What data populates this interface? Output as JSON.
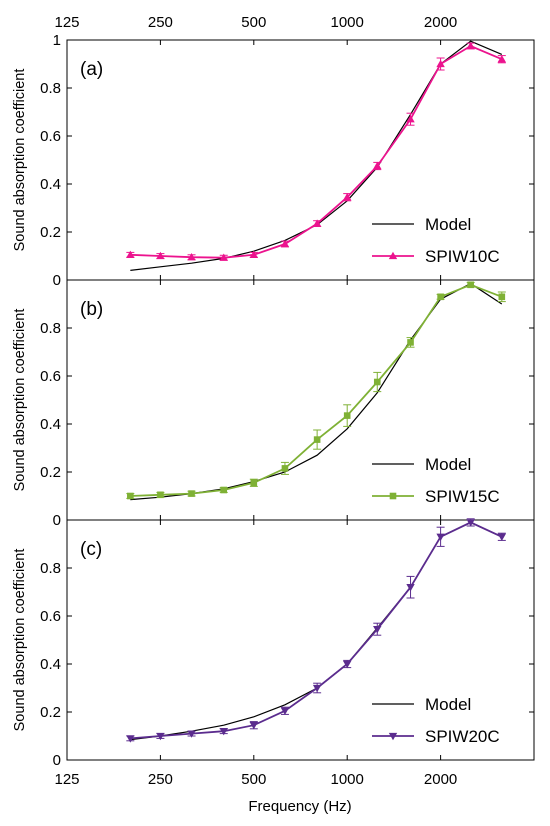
{
  "x_ticks": [
    "125",
    "250",
    "500",
    "1000",
    "2000"
  ],
  "x_label": "Frequency (Hz)",
  "chart_data": [
    {
      "type": "line",
      "panel_label": "(a)",
      "ylabel": "Sound absorption coefficient",
      "xlabel": "",
      "x_scale": "log",
      "xlim": [
        125,
        4000
      ],
      "ylim": [
        0,
        1
      ],
      "yticks": [
        "0",
        "0.2",
        "0.4",
        "0.6",
        "0.8",
        "1"
      ],
      "legend_position": "bottom-right",
      "series": [
        {
          "name": "Model",
          "color": "#000000",
          "marker": "none",
          "x": [
            200,
            250,
            315,
            400,
            500,
            630,
            800,
            1000,
            1250,
            1600,
            2000,
            2500,
            3150
          ],
          "y": [
            0.04,
            0.055,
            0.07,
            0.09,
            0.12,
            0.165,
            0.23,
            0.33,
            0.47,
            0.69,
            0.9,
            0.995,
            0.94
          ]
        },
        {
          "name": "SPIW10C",
          "color": "#ec138e",
          "marker": "triangle-up",
          "x": [
            200,
            250,
            315,
            400,
            500,
            630,
            800,
            1000,
            1250,
            1600,
            2000,
            2500,
            3150
          ],
          "y": [
            0.105,
            0.1,
            0.095,
            0.093,
            0.105,
            0.15,
            0.235,
            0.345,
            0.475,
            0.67,
            0.9,
            0.975,
            0.92
          ],
          "error": [
            0.01,
            0.01,
            0.01,
            0.01,
            0.01,
            0.012,
            0.012,
            0.015,
            0.015,
            0.025,
            0.025,
            0.012,
            0.015
          ]
        }
      ]
    },
    {
      "type": "line",
      "panel_label": "(b)",
      "ylabel": "Sound absorption coefficient",
      "xlabel": "",
      "x_scale": "log",
      "xlim": [
        125,
        4000
      ],
      "ylim": [
        0,
        1
      ],
      "yticks": [
        "0",
        "0.2",
        "0.4",
        "0.6",
        "0.8"
      ],
      "legend_position": "bottom-right",
      "series": [
        {
          "name": "Model",
          "color": "#000000",
          "marker": "none",
          "x": [
            200,
            250,
            315,
            400,
            500,
            630,
            800,
            1000,
            1250,
            1600,
            2000,
            2500,
            3150
          ],
          "y": [
            0.085,
            0.095,
            0.11,
            0.13,
            0.16,
            0.2,
            0.27,
            0.38,
            0.53,
            0.75,
            0.92,
            0.985,
            0.9
          ]
        },
        {
          "name": "SPIW15C",
          "color": "#7fb135",
          "marker": "square",
          "x": [
            200,
            250,
            315,
            400,
            500,
            630,
            800,
            1000,
            1250,
            1600,
            2000,
            2500,
            3150
          ],
          "y": [
            0.1,
            0.105,
            0.11,
            0.125,
            0.155,
            0.215,
            0.335,
            0.435,
            0.575,
            0.74,
            0.93,
            0.98,
            0.93
          ],
          "error": [
            0.01,
            0.01,
            0.01,
            0.01,
            0.015,
            0.025,
            0.04,
            0.045,
            0.04,
            0.02,
            0.01,
            0.01,
            0.02
          ]
        }
      ]
    },
    {
      "type": "line",
      "panel_label": "(c)",
      "ylabel": "Sound absorption coefficient",
      "xlabel": "Frequency (Hz)",
      "x_scale": "log",
      "xlim": [
        125,
        4000
      ],
      "ylim": [
        0,
        1
      ],
      "yticks": [
        "0",
        "0.2",
        "0.4",
        "0.6",
        "0.8"
      ],
      "legend_position": "bottom-right",
      "series": [
        {
          "name": "Model",
          "color": "#000000",
          "marker": "none",
          "x": [
            200,
            250,
            315,
            400,
            500,
            630,
            800,
            1000,
            1250,
            1600,
            2000,
            2500,
            3150
          ],
          "y": [
            0.085,
            0.1,
            0.12,
            0.145,
            0.18,
            0.23,
            0.3,
            0.4,
            0.55,
            0.72,
            0.93,
            0.99,
            0.93
          ]
        },
        {
          "name": "SPIW20C",
          "color": "#5b2c8e",
          "marker": "triangle-down",
          "x": [
            200,
            250,
            315,
            400,
            500,
            630,
            800,
            1000,
            1250,
            1600,
            2000,
            2500,
            3150
          ],
          "y": [
            0.09,
            0.1,
            0.11,
            0.12,
            0.145,
            0.205,
            0.3,
            0.4,
            0.545,
            0.72,
            0.93,
            0.99,
            0.93
          ],
          "error": [
            0.01,
            0.01,
            0.01,
            0.01,
            0.015,
            0.015,
            0.02,
            0.015,
            0.025,
            0.045,
            0.04,
            0.015,
            0.015
          ]
        }
      ]
    }
  ]
}
